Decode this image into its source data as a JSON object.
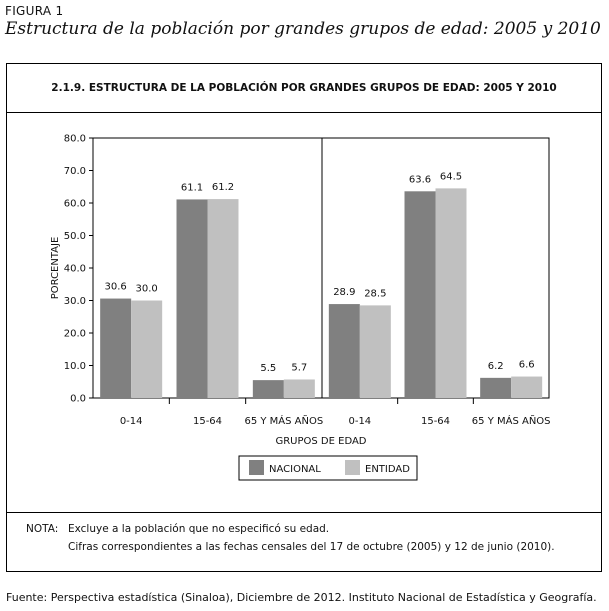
{
  "figure": {
    "label": "FIGURA 1",
    "title": "Estructura de la población por grandes grupos de edad: 2005 y 2010"
  },
  "chart_data": {
    "type": "bar",
    "title": "2.1.9. ESTRUCTURA DE LA POBLACIÓN POR GRANDES GRUPOS DE EDAD: 2005 Y 2010",
    "xlabel": "GRUPOS DE EDAD",
    "ylabel": "PORCENTAJE",
    "ylim": [
      0,
      80
    ],
    "yticks": [
      "0.0",
      "10.0",
      "20.0",
      "30.0",
      "40.0",
      "50.0",
      "60.0",
      "70.0",
      "80.0"
    ],
    "grid": false,
    "legend_position": "bottom",
    "panels": [
      {
        "categories": [
          "0-14",
          "15-64",
          "65 Y MÁS AÑOS"
        ],
        "series": [
          {
            "name": "NACIONAL",
            "values": [
              30.6,
              61.1,
              5.5
            ],
            "labels": [
              "30.6",
              "61.1",
              "5.5"
            ]
          },
          {
            "name": "ENTIDAD",
            "values": [
              30.0,
              61.2,
              5.7
            ],
            "labels": [
              "30.0",
              "61.2",
              "5.7"
            ]
          }
        ]
      },
      {
        "categories": [
          "0-14",
          "15-64",
          "65 Y MÁS AÑOS"
        ],
        "series": [
          {
            "name": "NACIONAL",
            "values": [
              28.9,
              63.6,
              6.2
            ],
            "labels": [
              "28.9",
              "63.6",
              "6.2"
            ]
          },
          {
            "name": "ENTIDAD",
            "values": [
              28.5,
              64.5,
              6.6
            ],
            "labels": [
              "28.5",
              "64.5",
              "6.6"
            ]
          }
        ]
      }
    ],
    "colors": {
      "NACIONAL": "#808080",
      "ENTIDAD": "#c0c0c0"
    }
  },
  "note": {
    "label": "NOTA:",
    "line1": "Excluye a la población que no especificó su edad.",
    "line2": "Cifras correspondientes a las fechas censales del 17 de octubre (2005) y 12 de junio (2010)."
  },
  "source": "Fuente: Perspectiva estadística (Sinaloa), Diciembre de 2012. Instituto Nacional de Estadística y Geografía."
}
